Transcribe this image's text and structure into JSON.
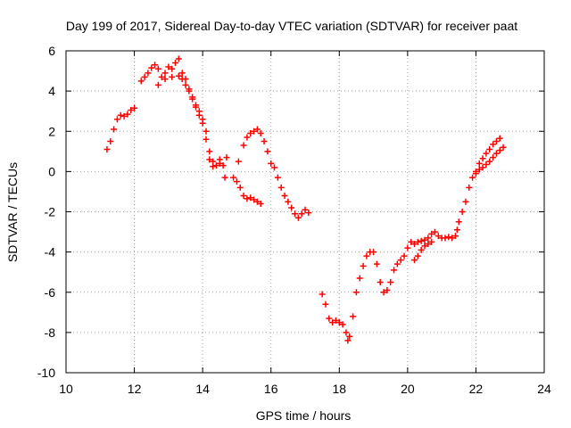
{
  "chart_data": {
    "type": "scatter",
    "title": "Day 199 of 2017, Sidereal Day-to-day VTEC variation (SDTVAR) for receiver paat",
    "xlabel": "GPS time / hours",
    "ylabel": "SDTVAR / TECUs",
    "xlim": [
      10,
      24
    ],
    "ylim": [
      -10,
      6
    ],
    "xticks": [
      10,
      12,
      14,
      16,
      18,
      20,
      22,
      24
    ],
    "yticks": [
      -10,
      -8,
      -6,
      -4,
      -2,
      0,
      2,
      4,
      6
    ],
    "grid": true,
    "marker": "plus",
    "colors": {
      "series": "#ff0000",
      "grid": "#a0a0a0",
      "axis": "#000000"
    },
    "series": [
      {
        "values": [
          [
            11.2,
            1.1
          ],
          [
            11.3,
            1.5
          ],
          [
            11.4,
            2.1
          ],
          [
            11.5,
            2.6
          ],
          [
            11.6,
            2.8
          ],
          [
            11.7,
            2.75
          ],
          [
            11.8,
            2.85
          ],
          [
            11.9,
            3.05
          ],
          [
            12.0,
            3.15
          ],
          [
            12.2,
            4.5
          ],
          [
            12.3,
            4.7
          ],
          [
            12.4,
            4.9
          ],
          [
            12.5,
            5.15
          ],
          [
            12.6,
            5.3
          ],
          [
            12.7,
            5.1
          ],
          [
            12.8,
            4.7
          ],
          [
            12.9,
            4.9
          ],
          [
            13.0,
            5.2
          ],
          [
            13.1,
            5.1
          ],
          [
            13.2,
            5.4
          ],
          [
            13.3,
            5.6
          ],
          [
            12.7,
            4.3
          ],
          [
            12.9,
            4.6
          ],
          [
            13.1,
            4.7
          ],
          [
            13.3,
            4.75
          ],
          [
            13.4,
            4.6
          ],
          [
            13.5,
            4.3
          ],
          [
            13.6,
            4.0
          ],
          [
            13.7,
            3.6
          ],
          [
            13.8,
            3.3
          ],
          [
            13.9,
            3.0
          ],
          [
            14.0,
            2.6
          ],
          [
            14.1,
            2.0
          ],
          [
            14.2,
            1.0
          ],
          [
            14.3,
            0.5
          ],
          [
            14.4,
            0.3
          ],
          [
            14.5,
            0.4
          ],
          [
            14.6,
            0.3
          ],
          [
            14.65,
            -0.3
          ],
          [
            13.4,
            4.9
          ],
          [
            13.5,
            4.6
          ],
          [
            13.6,
            4.1
          ],
          [
            13.7,
            3.7
          ],
          [
            13.8,
            3.2
          ],
          [
            13.9,
            2.8
          ],
          [
            14.0,
            2.4
          ],
          [
            14.1,
            1.6
          ],
          [
            14.2,
            0.6
          ],
          [
            14.3,
            0.25
          ],
          [
            14.5,
            0.6
          ],
          [
            14.7,
            0.7
          ],
          [
            14.9,
            -0.3
          ],
          [
            15.0,
            -0.5
          ],
          [
            15.05,
            0.5
          ],
          [
            15.1,
            -0.8
          ],
          [
            15.2,
            -1.2
          ],
          [
            15.3,
            -1.35
          ],
          [
            15.4,
            -1.3
          ],
          [
            15.5,
            -1.4
          ],
          [
            15.6,
            -1.5
          ],
          [
            15.7,
            -1.6
          ],
          [
            15.2,
            1.3
          ],
          [
            15.3,
            1.7
          ],
          [
            15.4,
            1.9
          ],
          [
            15.5,
            2.0
          ],
          [
            15.6,
            2.1
          ],
          [
            15.7,
            1.9
          ],
          [
            15.8,
            1.5
          ],
          [
            15.9,
            1.0
          ],
          [
            16.0,
            0.4
          ],
          [
            16.1,
            0.2
          ],
          [
            16.2,
            -0.3
          ],
          [
            16.3,
            -0.8
          ],
          [
            16.4,
            -1.2
          ],
          [
            16.5,
            -1.5
          ],
          [
            16.6,
            -1.8
          ],
          [
            16.7,
            -2.1
          ],
          [
            16.8,
            -2.3
          ],
          [
            16.9,
            -2.1
          ],
          [
            17.0,
            -1.9
          ],
          [
            17.1,
            -2.05
          ],
          [
            17.5,
            -6.1
          ],
          [
            17.6,
            -6.6
          ],
          [
            17.7,
            -7.3
          ],
          [
            17.8,
            -7.5
          ],
          [
            17.9,
            -7.4
          ],
          [
            18.0,
            -7.5
          ],
          [
            18.1,
            -7.6
          ],
          [
            18.2,
            -8.0
          ],
          [
            18.25,
            -8.4
          ],
          [
            18.3,
            -8.2
          ],
          [
            18.4,
            -7.2
          ],
          [
            18.5,
            -6.0
          ],
          [
            18.6,
            -5.3
          ],
          [
            18.7,
            -4.7
          ],
          [
            18.8,
            -4.2
          ],
          [
            18.9,
            -4.0
          ],
          [
            19.0,
            -4.0
          ],
          [
            19.1,
            -4.6
          ],
          [
            19.2,
            -5.5
          ],
          [
            19.3,
            -6.0
          ],
          [
            19.4,
            -5.9
          ],
          [
            19.5,
            -5.5
          ],
          [
            19.6,
            -4.9
          ],
          [
            19.7,
            -4.6
          ],
          [
            19.8,
            -4.4
          ],
          [
            19.9,
            -4.2
          ],
          [
            20.0,
            -3.8
          ],
          [
            20.1,
            -3.5
          ],
          [
            20.2,
            -3.6
          ],
          [
            20.3,
            -3.5
          ],
          [
            20.4,
            -3.45
          ],
          [
            20.5,
            -3.4
          ],
          [
            20.6,
            -3.3
          ],
          [
            20.7,
            -3.1
          ],
          [
            20.8,
            -3.0
          ],
          [
            20.9,
            -3.2
          ],
          [
            21.0,
            -3.3
          ],
          [
            21.1,
            -3.3
          ],
          [
            21.2,
            -3.25
          ],
          [
            21.3,
            -3.3
          ],
          [
            21.4,
            -3.2
          ],
          [
            20.2,
            -4.4
          ],
          [
            20.3,
            -4.2
          ],
          [
            20.4,
            -3.9
          ],
          [
            20.5,
            -3.7
          ],
          [
            20.6,
            -3.6
          ],
          [
            20.7,
            -3.5
          ],
          [
            21.45,
            -2.9
          ],
          [
            21.5,
            -2.5
          ],
          [
            21.6,
            -2.0
          ],
          [
            21.7,
            -1.5
          ],
          [
            21.8,
            -0.8
          ],
          [
            21.9,
            -0.3
          ],
          [
            22.0,
            0.0
          ],
          [
            22.1,
            0.1
          ],
          [
            22.2,
            0.2
          ],
          [
            22.3,
            0.35
          ],
          [
            22.4,
            0.5
          ],
          [
            22.5,
            0.7
          ],
          [
            22.6,
            0.9
          ],
          [
            22.7,
            1.05
          ],
          [
            22.8,
            1.2
          ],
          [
            22.0,
            -0.1
          ],
          [
            22.1,
            0.4
          ],
          [
            22.2,
            0.65
          ],
          [
            22.3,
            0.9
          ],
          [
            22.4,
            1.1
          ],
          [
            22.5,
            1.35
          ],
          [
            22.6,
            1.5
          ],
          [
            22.7,
            1.65
          ]
        ]
      }
    ]
  }
}
